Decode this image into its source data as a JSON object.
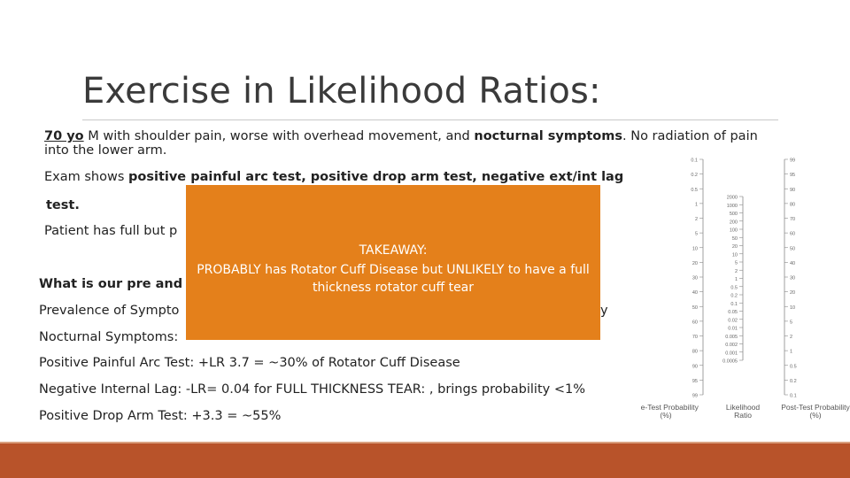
{
  "title": "Exercise in Likelihood Ratios:",
  "case": {
    "line1_age": "70 yo",
    "line1_rest": " M with shoulder pain, worse with overhead movement, and ",
    "line1_bold": "nocturnal symptoms",
    "line1_tail": ". No radiation of pain into the lower arm.",
    "exam_prefix": "Exam shows ",
    "exam_bold": "positive painful arc test, positive drop arm test, negative ext/int lag",
    "exam_cont": "test.",
    "patient_visible": "Patient has full but p"
  },
  "question_visible": "What is our pre and p",
  "prevalence_visible": "Prevalence of Sympto",
  "prevalence_tail": "y",
  "nocturnal_visible": "Nocturnal Symptoms:",
  "findings": [
    "Positive Painful Arc Test: +LR 3.7 = ~30% of Rotator Cuff Disease",
    "Negative Internal Lag: -LR= 0.04 for FULL THICKNESS TEAR: , brings probability <1%",
    "Positive Drop Arm Test: +3.3 = ~55%"
  ],
  "takeaway": {
    "heading": "TAKEAWAY:",
    "body": "PROBABLY has Rotator Cuff Disease but UNLIKELY to have a full thickness rotator cuff tear"
  },
  "nomogram": {
    "left_label": "Pre-Test Probability (%)",
    "middle_label": "Likelihood Ratio",
    "right_label": "Post-Test Probability (%)",
    "left_ticks": [
      "0.1",
      "0.2",
      "0.5",
      "1",
      "2",
      "5",
      "10",
      "20",
      "30",
      "40",
      "50",
      "60",
      "70",
      "80",
      "90",
      "95",
      "99"
    ],
    "middle_ticks": [
      "2000",
      "1000",
      "500",
      "200",
      "100",
      "50",
      "20",
      "10",
      "5",
      "2",
      "1",
      "0.5",
      "0.2",
      "0.1",
      "0.05",
      "0.02",
      "0.01",
      "0.005",
      "0.002",
      "0.001",
      "0.0005"
    ],
    "right_ticks": [
      "99",
      "95",
      "90",
      "80",
      "70",
      "60",
      "50",
      "40",
      "30",
      "20",
      "10",
      "5",
      "2",
      "1",
      "0.5",
      "0.2",
      "0.1"
    ]
  },
  "colors": {
    "callout": "#e4801b",
    "bottom_bar": "#b8532a"
  }
}
